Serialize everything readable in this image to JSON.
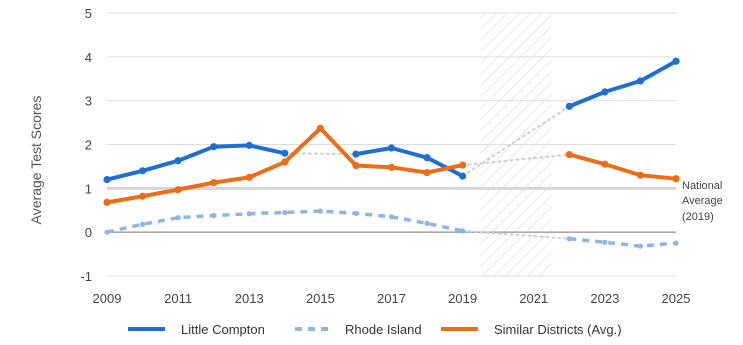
{
  "chart_data": {
    "type": "line",
    "ylabel": "Average Test Scores",
    "ylim": [
      -1,
      5
    ],
    "yticks": [
      "5",
      "4",
      "3",
      "2",
      "1",
      "0",
      "-1"
    ],
    "xlim": [
      2009,
      2025
    ],
    "xticks": [
      "2009",
      "2011",
      "2013",
      "2015",
      "2017",
      "2019",
      "2021",
      "2023",
      "2025"
    ],
    "grid": true,
    "legend_position": "bottom",
    "reference_line": {
      "y": 1,
      "label_lines": [
        "National",
        "Average",
        "(2019)"
      ]
    },
    "shaded_gap": {
      "x_start": 2019.5,
      "x_end": 2021.5
    },
    "colors": {
      "little_compton": "#1f6fd1",
      "rhode_island": "#8db6e6",
      "similar": "#ee6c16",
      "bridge": "#cfcfcf",
      "grid": "#dddddd",
      "zero": "#aaaaaa",
      "ref": "#d6d6d6"
    },
    "series": [
      {
        "name": "Little Compton",
        "style": "solid",
        "segments": [
          [
            [
              2009,
              1.2
            ],
            [
              2010,
              1.4
            ],
            [
              2011,
              1.63
            ],
            [
              2012,
              1.95
            ],
            [
              2013,
              1.98
            ],
            [
              2014,
              1.8
            ]
          ],
          [
            [
              2016,
              1.78
            ],
            [
              2017,
              1.92
            ],
            [
              2018,
              1.7
            ],
            [
              2019,
              1.28
            ]
          ],
          [
            [
              2022,
              2.87
            ],
            [
              2023,
              3.2
            ],
            [
              2024,
              3.45
            ],
            [
              2025,
              3.9
            ]
          ]
        ]
      },
      {
        "name": "Rhode Island",
        "style": "dashed",
        "segments": [
          [
            [
              2009,
              0.0
            ],
            [
              2010,
              0.18
            ],
            [
              2011,
              0.33
            ],
            [
              2012,
              0.38
            ],
            [
              2013,
              0.42
            ],
            [
              2014,
              0.45
            ],
            [
              2015,
              0.48
            ],
            [
              2016,
              0.43
            ],
            [
              2017,
              0.35
            ],
            [
              2018,
              0.2
            ],
            [
              2019,
              0.03
            ]
          ],
          [
            [
              2022,
              -0.15
            ],
            [
              2023,
              -0.23
            ],
            [
              2024,
              -0.32
            ],
            [
              2025,
              -0.25
            ]
          ]
        ]
      },
      {
        "name": "Similar Districts (Avg.)",
        "style": "solid",
        "segments": [
          [
            [
              2009,
              0.68
            ],
            [
              2010,
              0.82
            ],
            [
              2011,
              0.97
            ],
            [
              2012,
              1.13
            ],
            [
              2013,
              1.25
            ],
            [
              2014,
              1.6
            ],
            [
              2015,
              2.37
            ],
            [
              2016,
              1.52
            ],
            [
              2017,
              1.48
            ],
            [
              2018,
              1.36
            ],
            [
              2019,
              1.53
            ]
          ],
          [
            [
              2022,
              1.77
            ],
            [
              2023,
              1.55
            ],
            [
              2024,
              1.3
            ],
            [
              2025,
              1.22
            ]
          ]
        ]
      }
    ],
    "bridges": [
      [
        [
          2014,
          1.8
        ],
        [
          2016,
          1.78
        ]
      ],
      [
        [
          2019,
          1.28
        ],
        [
          2022,
          2.87
        ]
      ],
      [
        [
          2019,
          1.53
        ],
        [
          2022,
          1.77
        ]
      ],
      [
        [
          2019,
          0.03
        ],
        [
          2022,
          -0.15
        ]
      ]
    ]
  }
}
